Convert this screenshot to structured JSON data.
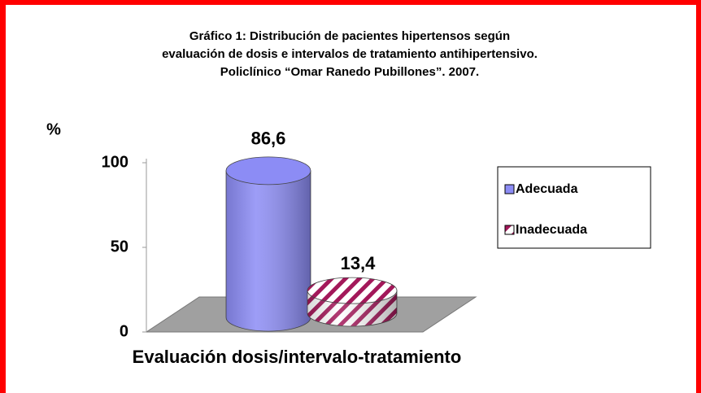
{
  "chart_data": {
    "type": "bar3d",
    "title": [
      "Gráfico 1: Distribución de pacientes hipertensos según",
      "evaluación de dosis e intervalos de tratamiento antihipertensivo.",
      "Policlínico “Omar Ranedo Pubillones”. 2007."
    ],
    "ylabel": "%",
    "xlabel": "Evaluación dosis/intervalo-tratamiento",
    "ylim": [
      0,
      100
    ],
    "yticks": [
      0,
      50,
      100
    ],
    "legend": "right",
    "series": [
      {
        "name": "Adecuada",
        "color": "#8c8cf5",
        "values": [
          86.6
        ],
        "value_labels": [
          "86,6"
        ]
      },
      {
        "name": "Inadecuada",
        "color": "#a3185a",
        "values": [
          13.4
        ],
        "value_labels": [
          "13,4"
        ]
      }
    ]
  }
}
